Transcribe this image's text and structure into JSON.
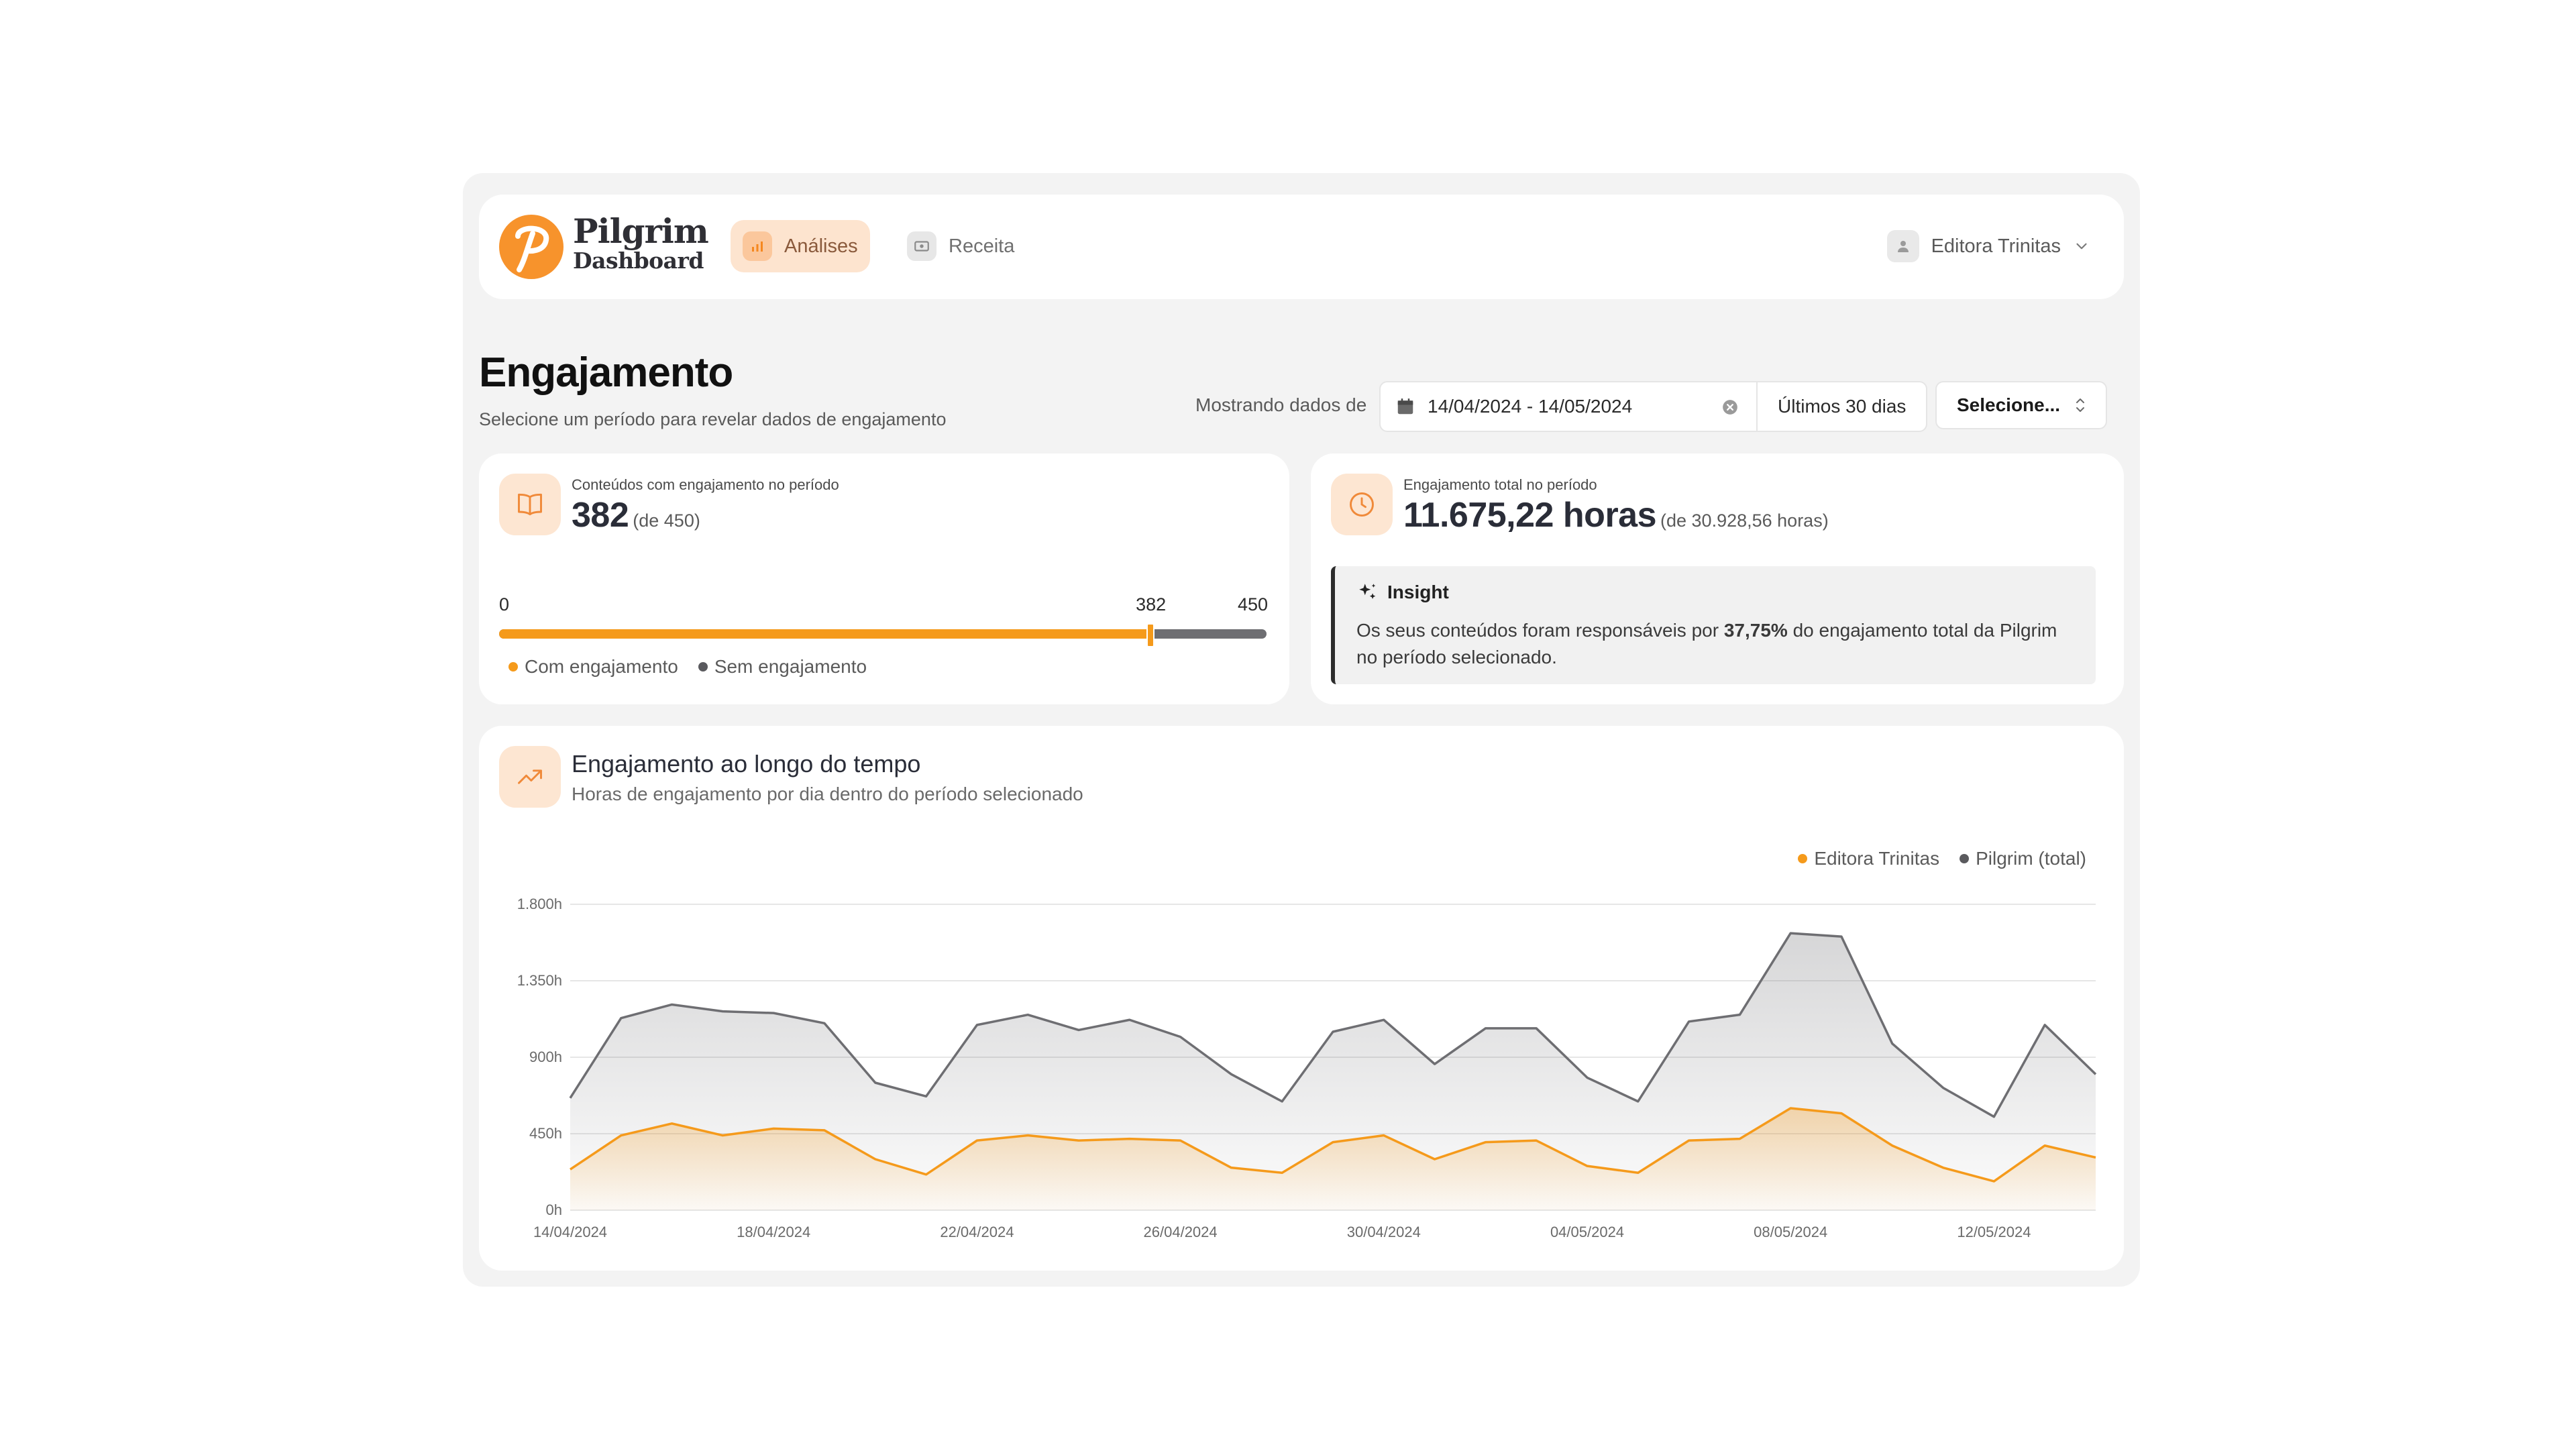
{
  "header": {
    "logo_line1": "Pilgrim",
    "logo_line2": "Dashboard",
    "nav": [
      {
        "label": "Análises",
        "icon": "bar-chart-icon",
        "active": true
      },
      {
        "label": "Receita",
        "icon": "money-icon",
        "active": false
      }
    ],
    "user_name": "Editora Trinitas"
  },
  "page": {
    "title": "Engajamento",
    "subtitle": "Selecione um período para revelar dados de engajamento"
  },
  "filters": {
    "label": "Mostrando dados de",
    "date_range": "14/04/2024 - 14/05/2024",
    "preset": "Últimos 30 dias",
    "select_value": "Selecione..."
  },
  "kpi_contents": {
    "label": "Conteúdos com engajamento no período",
    "value": "382",
    "total_text": "(de 450)",
    "bar_min": "0",
    "bar_value": "382",
    "bar_max": "450",
    "engaged_count": 382,
    "total_count": 450,
    "legend_engaged": "Com engajamento",
    "legend_not_engaged": "Sem engajamento"
  },
  "kpi_hours": {
    "label": "Engajamento total no período",
    "value": "11.675,22 horas",
    "total_text": "(de 30.928,56 horas)",
    "insight_title": "Insight",
    "insight_prefix": "Os seus conteúdos foram responsáveis por ",
    "insight_highlight": "37,75%",
    "insight_suffix": " do engajamento total da Pilgrim no período selecionado."
  },
  "chart": {
    "title": "Engajamento ao longo do tempo",
    "subtitle": "Horas de engajamento por dia dentro do período selecionado",
    "legend": [
      "Editora Trinitas",
      "Pilgrim (total)"
    ]
  },
  "colors": {
    "accent": "#f59a1b",
    "gray_series": "#6e6e72",
    "icon_bg": "#fde6d2"
  },
  "chart_data": {
    "type": "area",
    "x": [
      "14/04/2024",
      "15/04/2024",
      "16/04/2024",
      "17/04/2024",
      "18/04/2024",
      "19/04/2024",
      "20/04/2024",
      "21/04/2024",
      "22/04/2024",
      "23/04/2024",
      "24/04/2024",
      "25/04/2024",
      "26/04/2024",
      "27/04/2024",
      "28/04/2024",
      "29/04/2024",
      "30/04/2024",
      "01/05/2024",
      "02/05/2024",
      "03/05/2024",
      "04/05/2024",
      "05/05/2024",
      "06/05/2024",
      "07/05/2024",
      "08/05/2024",
      "09/05/2024",
      "10/05/2024",
      "11/05/2024",
      "12/05/2024",
      "13/05/2024",
      "14/05/2024"
    ],
    "x_ticks": [
      "14/04/2024",
      "18/04/2024",
      "22/04/2024",
      "26/04/2024",
      "30/04/2024",
      "04/05/2024",
      "08/05/2024",
      "12/05/2024"
    ],
    "y_ticks": [
      "0h",
      "450h",
      "900h",
      "1.350h",
      "1.800h"
    ],
    "ylim": [
      0,
      1800
    ],
    "series": [
      {
        "name": "Editora Trinitas",
        "color": "#f59a1b",
        "values": [
          240,
          440,
          510,
          440,
          480,
          470,
          300,
          210,
          410,
          440,
          410,
          420,
          410,
          250,
          220,
          400,
          440,
          300,
          400,
          410,
          260,
          220,
          410,
          420,
          600,
          570,
          380,
          250,
          170,
          380,
          310
        ]
      },
      {
        "name": "Pilgrim (total)",
        "color": "#6e6e72",
        "values": [
          660,
          1130,
          1210,
          1170,
          1160,
          1100,
          750,
          670,
          1090,
          1150,
          1060,
          1120,
          1020,
          800,
          640,
          1050,
          1120,
          860,
          1070,
          1070,
          780,
          640,
          1110,
          1150,
          1630,
          1610,
          980,
          720,
          550,
          1090,
          800
        ]
      }
    ],
    "grid": true,
    "legend_position": "top-right"
  }
}
